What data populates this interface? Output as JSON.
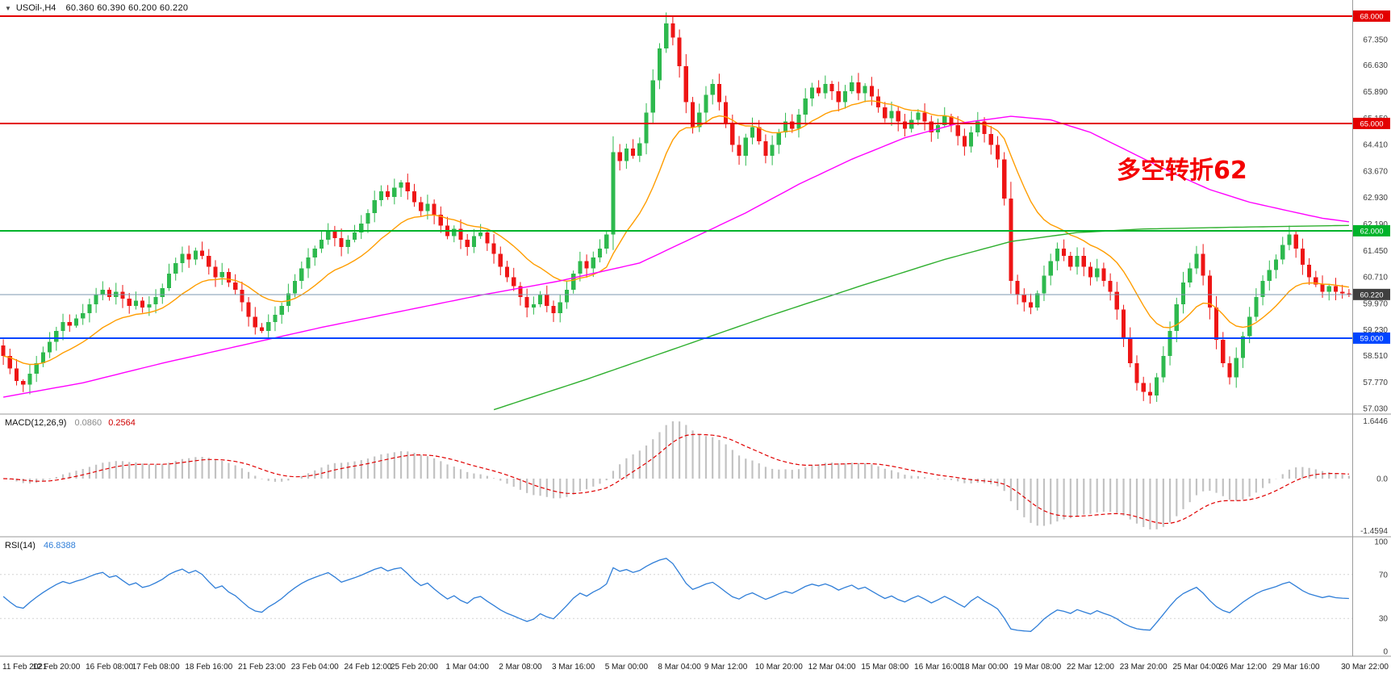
{
  "ui": {
    "collapse_icon": "▼"
  },
  "chart_data": [
    {
      "type": "candlestick",
      "symbol": "USOil-,H4",
      "timeframe": "H4",
      "ohlc_text": "60.360 60.390 60.200 60.220",
      "ohlc": {
        "open": "60.360",
        "high": "60.390",
        "low": "60.200",
        "close": "60.220"
      },
      "annotation": {
        "text": "多空转折62",
        "color": "#f40000"
      },
      "ylim": [
        56.9,
        68.45
      ],
      "first_open": 58.8,
      "closes": [
        58.5,
        58.15,
        57.8,
        57.7,
        58.0,
        58.3,
        58.6,
        58.9,
        59.2,
        59.45,
        59.35,
        59.55,
        59.7,
        59.95,
        60.2,
        60.35,
        60.15,
        60.3,
        60.1,
        59.9,
        60.05,
        59.85,
        59.95,
        60.15,
        60.4,
        60.8,
        61.1,
        61.35,
        61.2,
        61.45,
        61.3,
        61.0,
        60.7,
        60.85,
        60.55,
        60.35,
        60.0,
        59.6,
        59.3,
        59.2,
        59.45,
        59.65,
        59.9,
        60.25,
        60.6,
        60.95,
        61.25,
        61.5,
        61.75,
        62.0,
        61.8,
        61.55,
        61.75,
        61.95,
        62.2,
        62.5,
        62.85,
        63.1,
        62.95,
        63.2,
        63.35,
        63.1,
        62.8,
        62.55,
        62.75,
        62.45,
        62.15,
        61.85,
        62.05,
        61.75,
        61.55,
        61.85,
        61.95,
        61.65,
        61.35,
        61.0,
        60.7,
        60.45,
        60.15,
        59.85,
        59.95,
        60.2,
        59.9,
        59.7,
        60.0,
        60.35,
        60.8,
        61.15,
        60.95,
        61.25,
        61.5,
        61.9,
        64.2,
        63.95,
        64.3,
        64.1,
        64.45,
        65.3,
        66.2,
        67.1,
        67.8,
        67.4,
        66.6,
        65.6,
        64.9,
        65.3,
        65.8,
        66.1,
        65.6,
        65.0,
        64.4,
        64.1,
        64.6,
        64.9,
        64.5,
        64.1,
        64.4,
        64.75,
        65.05,
        64.85,
        65.25,
        65.7,
        66.0,
        65.85,
        66.1,
        65.9,
        65.6,
        65.9,
        66.15,
        65.85,
        66.05,
        65.75,
        65.45,
        65.15,
        65.35,
        65.05,
        64.85,
        65.1,
        65.3,
        65.05,
        64.75,
        64.95,
        65.2,
        64.95,
        64.65,
        64.35,
        64.75,
        65.05,
        64.7,
        64.4,
        64.0,
        62.9,
        60.6,
        60.2,
        60.0,
        59.85,
        60.25,
        60.75,
        61.15,
        61.5,
        61.3,
        61.0,
        61.3,
        61.0,
        60.7,
        60.95,
        60.6,
        60.3,
        59.8,
        59.0,
        58.3,
        57.75,
        57.5,
        57.4,
        57.9,
        58.5,
        59.2,
        59.95,
        60.55,
        60.95,
        61.35,
        60.75,
        59.85,
        58.95,
        58.3,
        57.9,
        58.45,
        59.05,
        59.6,
        60.15,
        60.6,
        60.9,
        61.2,
        61.6,
        61.9,
        61.5,
        61.05,
        60.7,
        60.5,
        60.3,
        60.45,
        60.3,
        60.25,
        60.22
      ],
      "colors": {
        "up": "#2eb94e",
        "down": "#ee1515"
      },
      "moving_averages": {
        "fast": {
          "type": "ema",
          "period": 16,
          "color": "#ff9d00"
        },
        "mid": {
          "type": "points",
          "color": "#ff00ff",
          "points": [
            [
              0,
              57.35
            ],
            [
              12,
              57.75
            ],
            [
              24,
              58.3
            ],
            [
              36,
              58.8
            ],
            [
              48,
              59.3
            ],
            [
              60,
              59.75
            ],
            [
              72,
              60.2
            ],
            [
              84,
              60.6
            ],
            [
              96,
              61.1
            ],
            [
              104,
              61.8
            ],
            [
              112,
              62.5
            ],
            [
              120,
              63.3
            ],
            [
              128,
              64.0
            ],
            [
              136,
              64.6
            ],
            [
              144,
              65.0
            ],
            [
              152,
              65.2
            ],
            [
              158,
              65.1
            ],
            [
              164,
              64.75
            ],
            [
              170,
              64.2
            ],
            [
              176,
              63.65
            ],
            [
              182,
              63.15
            ],
            [
              188,
              62.8
            ],
            [
              194,
              62.55
            ],
            [
              199,
              62.35
            ],
            [
              203,
              62.25
            ]
          ]
        },
        "slow": {
          "type": "points",
          "color": "#2eaf2e",
          "points": [
            [
              74,
              57.0
            ],
            [
              88,
              57.85
            ],
            [
              102,
              58.75
            ],
            [
              116,
              59.65
            ],
            [
              130,
              60.5
            ],
            [
              142,
              61.2
            ],
            [
              152,
              61.7
            ],
            [
              162,
              61.95
            ],
            [
              172,
              62.05
            ],
            [
              186,
              62.1
            ],
            [
              203,
              62.15
            ]
          ]
        }
      },
      "y_ticks": [
        "67.350",
        "66.630",
        "65.890",
        "65.150",
        "64.410",
        "63.670",
        "62.930",
        "62.190",
        "61.450",
        "60.710",
        "59.970",
        "59.230",
        "58.510",
        "57.770",
        "57.030"
      ],
      "level_lines": [
        {
          "label": "68.000",
          "value": 68.0,
          "color": "#e30000"
        },
        {
          "label": "65.000",
          "value": 65.0,
          "color": "#e30000"
        },
        {
          "label": "62.000",
          "value": 62.0,
          "color": "#00b32a"
        },
        {
          "label": "59.000",
          "value": 59.0,
          "color": "#0045ff"
        }
      ],
      "bid": {
        "label": "60.220",
        "value": 60.22,
        "tag_color": "#3f3f3f",
        "line_color": "#7e99b0"
      },
      "x_labels": [
        "11 Feb 2021",
        "12 Feb 20:00",
        "16 Feb 08:00",
        "17 Feb 08:00",
        "18 Feb 16:00",
        "21 Feb 23:00",
        "23 Feb 04:00",
        "24 Feb 12:00",
        "25 Feb 20:00",
        "1 Mar 04:00",
        "2 Mar 08:00",
        "3 Mar 16:00",
        "5 Mar 00:00",
        "8 Mar 04:00",
        "9 Mar 12:00",
        "10 Mar 20:00",
        "12 Mar 04:00",
        "15 Mar 08:00",
        "16 Mar 16:00",
        "18 Mar 00:00",
        "19 Mar 08:00",
        "22 Mar 12:00",
        "23 Mar 20:00",
        "25 Mar 04:00",
        "26 Mar 12:00",
        "29 Mar 16:00",
        "30 Mar 22:00"
      ]
    },
    {
      "type": "macd",
      "name": "MACD(12,26,9)",
      "params": [
        12,
        26,
        9
      ],
      "value_main": "0.0860",
      "value_signal": "0.2564",
      "y_ticks": [
        "1.6446",
        "0.0",
        "-1.4594"
      ],
      "histogram_color": "#c2c2c2",
      "signal_color": "#e00000",
      "derived_from": "closes of chart_data[0]"
    },
    {
      "type": "rsi",
      "name": "RSI(14)",
      "period": 14,
      "value": "46.8388",
      "y_ticks": [
        "100",
        "70",
        "30",
        "0"
      ],
      "level_lines": [
        70,
        30
      ],
      "line_color": "#2f7ed8",
      "derived_from": "closes of chart_data[0]"
    }
  ]
}
